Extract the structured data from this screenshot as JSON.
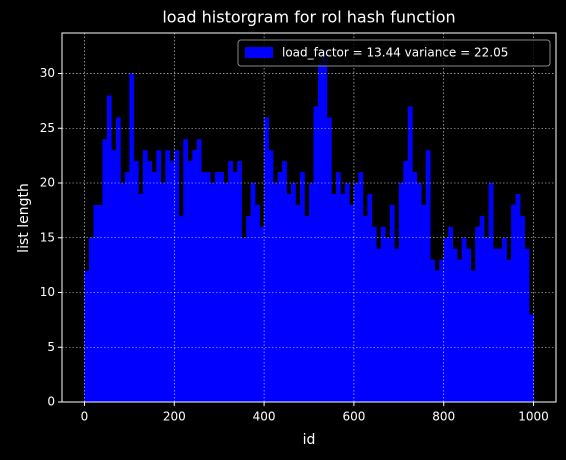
{
  "chart_data": {
    "type": "histogram",
    "title": "load historgram for rol hash function",
    "xlabel": "id",
    "ylabel": "list length",
    "bins": [
      0,
      10,
      20,
      30,
      40,
      50,
      60,
      70,
      80,
      90,
      100,
      110,
      120,
      130,
      140,
      150,
      160,
      170,
      180,
      190,
      200,
      210,
      220,
      230,
      240,
      250,
      260,
      270,
      280,
      290,
      300,
      310,
      320,
      330,
      340,
      350,
      360,
      370,
      380,
      390,
      400,
      410,
      420,
      430,
      440,
      450,
      460,
      470,
      480,
      490,
      500,
      510,
      520,
      530,
      540,
      550,
      560,
      570,
      580,
      590,
      600,
      610,
      620,
      630,
      640,
      650,
      660,
      670,
      680,
      690,
      700,
      710,
      720,
      730,
      740,
      750,
      760,
      770,
      780,
      790,
      800,
      810,
      820,
      830,
      840,
      850,
      860,
      870,
      880,
      890,
      900,
      910,
      920,
      930,
      940,
      950,
      960,
      970,
      980,
      990,
      1000
    ],
    "series": [
      {
        "name": "load_factor = 13.44 variance = 22.05",
        "color": "#0000ff",
        "values": [
          12,
          15,
          18,
          18,
          24,
          28,
          23,
          26,
          20,
          21,
          30,
          22,
          19,
          23,
          22,
          21,
          23,
          20,
          23,
          22,
          23,
          17,
          24,
          22,
          23,
          24,
          21,
          21,
          20,
          21,
          21,
          20,
          22,
          21,
          22,
          15,
          17,
          20,
          18,
          16,
          26,
          23,
          20,
          21,
          22,
          19,
          20,
          18,
          21,
          17,
          20,
          27,
          31,
          32,
          26,
          19,
          21,
          19,
          20,
          18,
          20,
          21,
          17,
          19,
          16,
          14,
          16,
          15,
          18,
          14,
          20,
          22,
          27,
          21,
          20,
          18,
          23,
          13,
          12,
          13,
          15,
          16,
          14,
          13,
          15,
          14,
          12,
          16,
          17,
          15,
          20,
          14,
          14,
          15,
          13,
          18,
          19,
          17,
          14,
          8
        ]
      }
    ],
    "xlim": [
      -50,
      1050
    ],
    "xticks": [
      0,
      200,
      400,
      600,
      800,
      1000
    ],
    "ylim": [
      0,
      33.7
    ],
    "yticks": [
      0,
      5,
      10,
      15,
      20,
      25,
      30
    ],
    "grid": true,
    "legend": "upper right"
  }
}
